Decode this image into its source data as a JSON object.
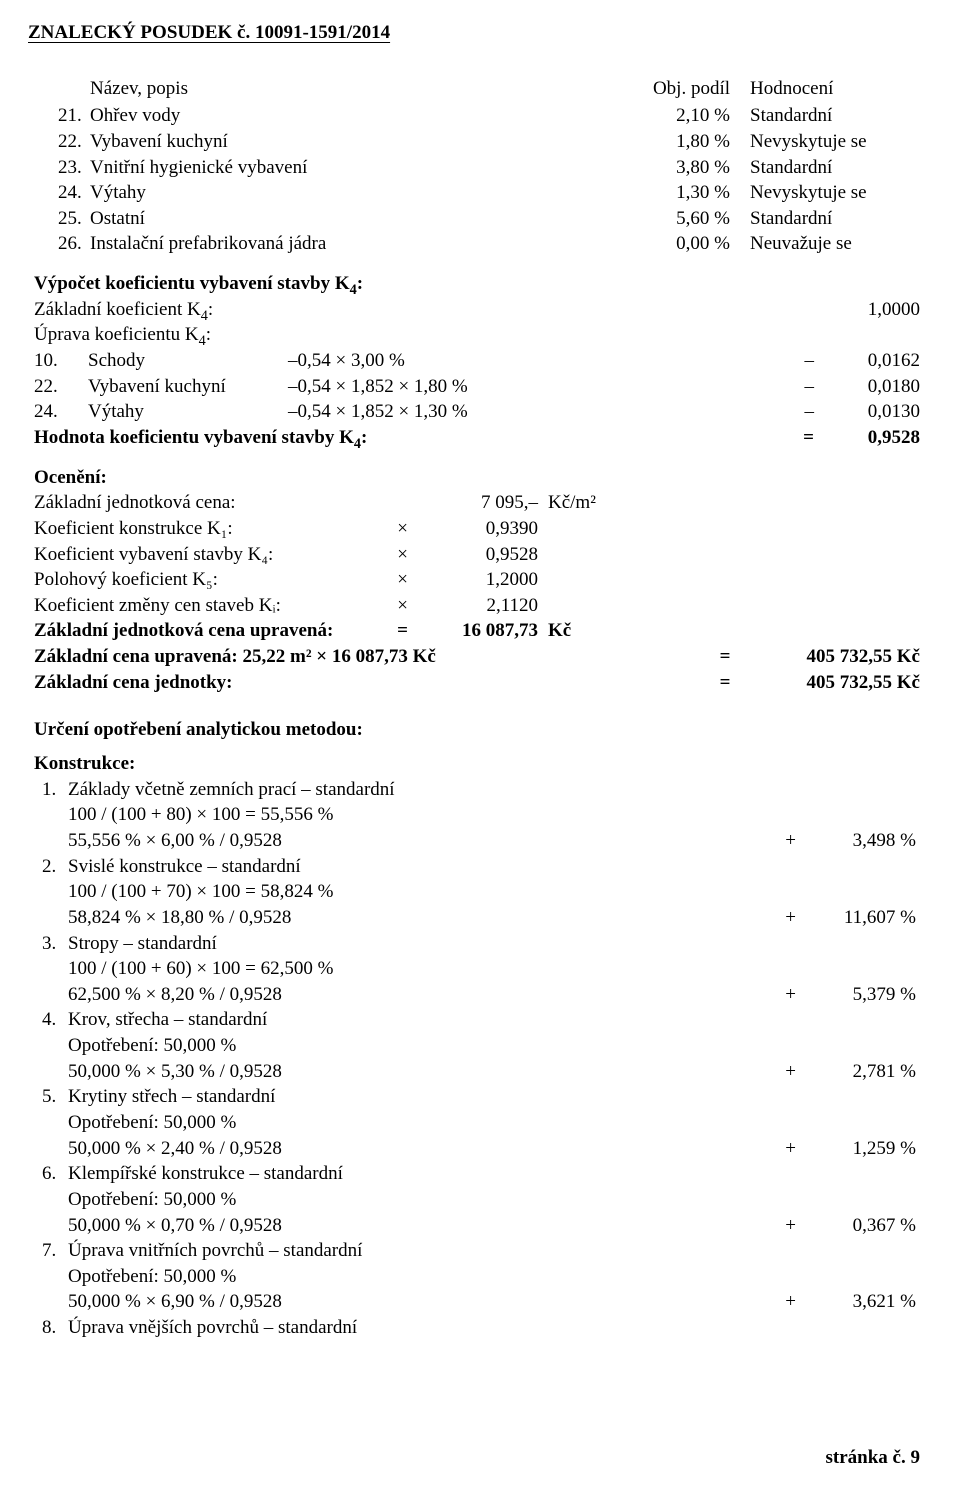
{
  "header": {
    "text": "ZNALECKÝ   POSUDEK č.  10091-1591/2014"
  },
  "equipTitle": {
    "c1": "Název, popis",
    "c2": "Obj. podíl",
    "c3": "Hodnocení"
  },
  "equip": [
    {
      "n": "21.",
      "t": "Ohřev vody",
      "p": "2,10 %",
      "h": "Standardní"
    },
    {
      "n": "22.",
      "t": "Vybavení kuchyní",
      "p": "1,80 %",
      "h": "Nevyskytuje se"
    },
    {
      "n": "23.",
      "t": "Vnitřní hygienické vybavení",
      "p": "3,80 %",
      "h": "Standardní"
    },
    {
      "n": "24.",
      "t": "Výtahy",
      "p": "1,30 %",
      "h": "Nevyskytuje se"
    },
    {
      "n": "25.",
      "t": "Ostatní",
      "p": "5,60 %",
      "h": "Standardní"
    },
    {
      "n": "26.",
      "t": "Instalační prefabrikovaná jádra",
      "p": "0,00 %",
      "h": "Neuvažuje se"
    }
  ],
  "k4": {
    "head": "Výpočet koeficientu vybavení stavby K",
    "headSub": "4",
    "headColon": ":",
    "basic": "Základní koeficient K",
    "basicSub": "4",
    "basicColon": ":",
    "basicVal": "1,0000",
    "adjust": "Úprava koeficientu K",
    "adjustSub": "4",
    "adjustColon": ":",
    "rows": [
      {
        "n": "10.",
        "t": "Schody",
        "m": "–0,54 × 3,00 %",
        "pre": "–",
        "v": "0,0162"
      },
      {
        "n": "22.",
        "t": "Vybavení kuchyní",
        "m": "–0,54 × 1,852 × 1,80 %",
        "pre": "–",
        "v": "0,0180"
      },
      {
        "n": "24.",
        "t": "Výtahy",
        "m": "–0,54 × 1,852 × 1,30 %",
        "pre": "–",
        "v": "0,0130"
      }
    ],
    "resultLabel": "Hodnota koeficientu vybavení stavby K",
    "resultSub": "4",
    "resultColon": ":",
    "resultPre": "=",
    "resultVal": "0,9528"
  },
  "ocen": {
    "head": "Ocenění:",
    "rows": [
      {
        "l": "Základní jednotková cena:",
        "s": "",
        "v": "7 095,–",
        "u": "Kč/m²"
      },
      {
        "l": "Koeficient konstrukce K₁:",
        "s": "×",
        "v": "0,9390",
        "u": ""
      },
      {
        "l": "Koeficient vybavení stavby K₄:",
        "s": "×",
        "v": "0,9528",
        "u": ""
      },
      {
        "l": "Polohový koeficient K₅:",
        "s": "×",
        "v": "1,2000",
        "u": ""
      },
      {
        "l": "Koeficient změny cen staveb Kᵢ:",
        "s": "×",
        "v": "2,1120",
        "u": ""
      }
    ],
    "upr": {
      "l": "Základní jednotková cena upravená:",
      "s": "=",
      "v": "16 087,73",
      "u": "Kč"
    },
    "zcu": {
      "l": "Základní cena upravená: 25,22 m² × 16 087,73 Kč",
      "eq": "=",
      "r": "405 732,55 Kč"
    },
    "zcj": {
      "l": "Základní cena jednotky:",
      "eq": "=",
      "r": "405 732,55 Kč"
    }
  },
  "wear": {
    "head": "Určení opotřebení analytickou metodou:",
    "sub": "Konstrukce:",
    "items": [
      {
        "n": "1.",
        "title": "Základy včetně zemních prací – standardní",
        "lines": [
          "100 / (100 + 80) × 100 = 55,556 %"
        ],
        "calc": "55,556 % × 6,00 % / 0,9528",
        "plus": "+",
        "val": "3,498 %"
      },
      {
        "n": "2.",
        "title": "Svislé konstrukce – standardní",
        "lines": [
          "100 / (100 + 70) × 100 = 58,824 %"
        ],
        "calc": "58,824 % × 18,80 % / 0,9528",
        "plus": "+",
        "val": "11,607 %"
      },
      {
        "n": "3.",
        "title": "Stropy – standardní",
        "lines": [
          "100 / (100 + 60) × 100 = 62,500 %"
        ],
        "calc": "62,500 % × 8,20 % / 0,9528",
        "plus": "+",
        "val": "5,379 %"
      },
      {
        "n": "4.",
        "title": "Krov, střecha – standardní",
        "lines": [
          "Opotřebení: 50,000 %"
        ],
        "calc": "50,000 % × 5,30 % / 0,9528",
        "plus": "+",
        "val": "2,781 %"
      },
      {
        "n": "5.",
        "title": "Krytiny střech – standardní",
        "lines": [
          "Opotřebení: 50,000 %"
        ],
        "calc": "50,000 % × 2,40 % / 0,9528",
        "plus": "+",
        "val": "1,259 %"
      },
      {
        "n": "6.",
        "title": "Klempířské konstrukce – standardní",
        "lines": [
          "Opotřebení: 50,000 %"
        ],
        "calc": "50,000 % × 0,70 % / 0,9528",
        "plus": "+",
        "val": "0,367 %"
      },
      {
        "n": "7.",
        "title": "Úprava vnitřních povrchů – standardní",
        "lines": [
          "Opotřebení: 50,000 %"
        ],
        "calc": "50,000 % × 6,90 % / 0,9528",
        "plus": "+",
        "val": "3,621 %"
      },
      {
        "n": "8.",
        "title": "Úprava vnějších povrchů – standardní",
        "lines": [],
        "calc": "",
        "plus": "",
        "val": ""
      }
    ]
  },
  "footer": "stránka č.  9"
}
